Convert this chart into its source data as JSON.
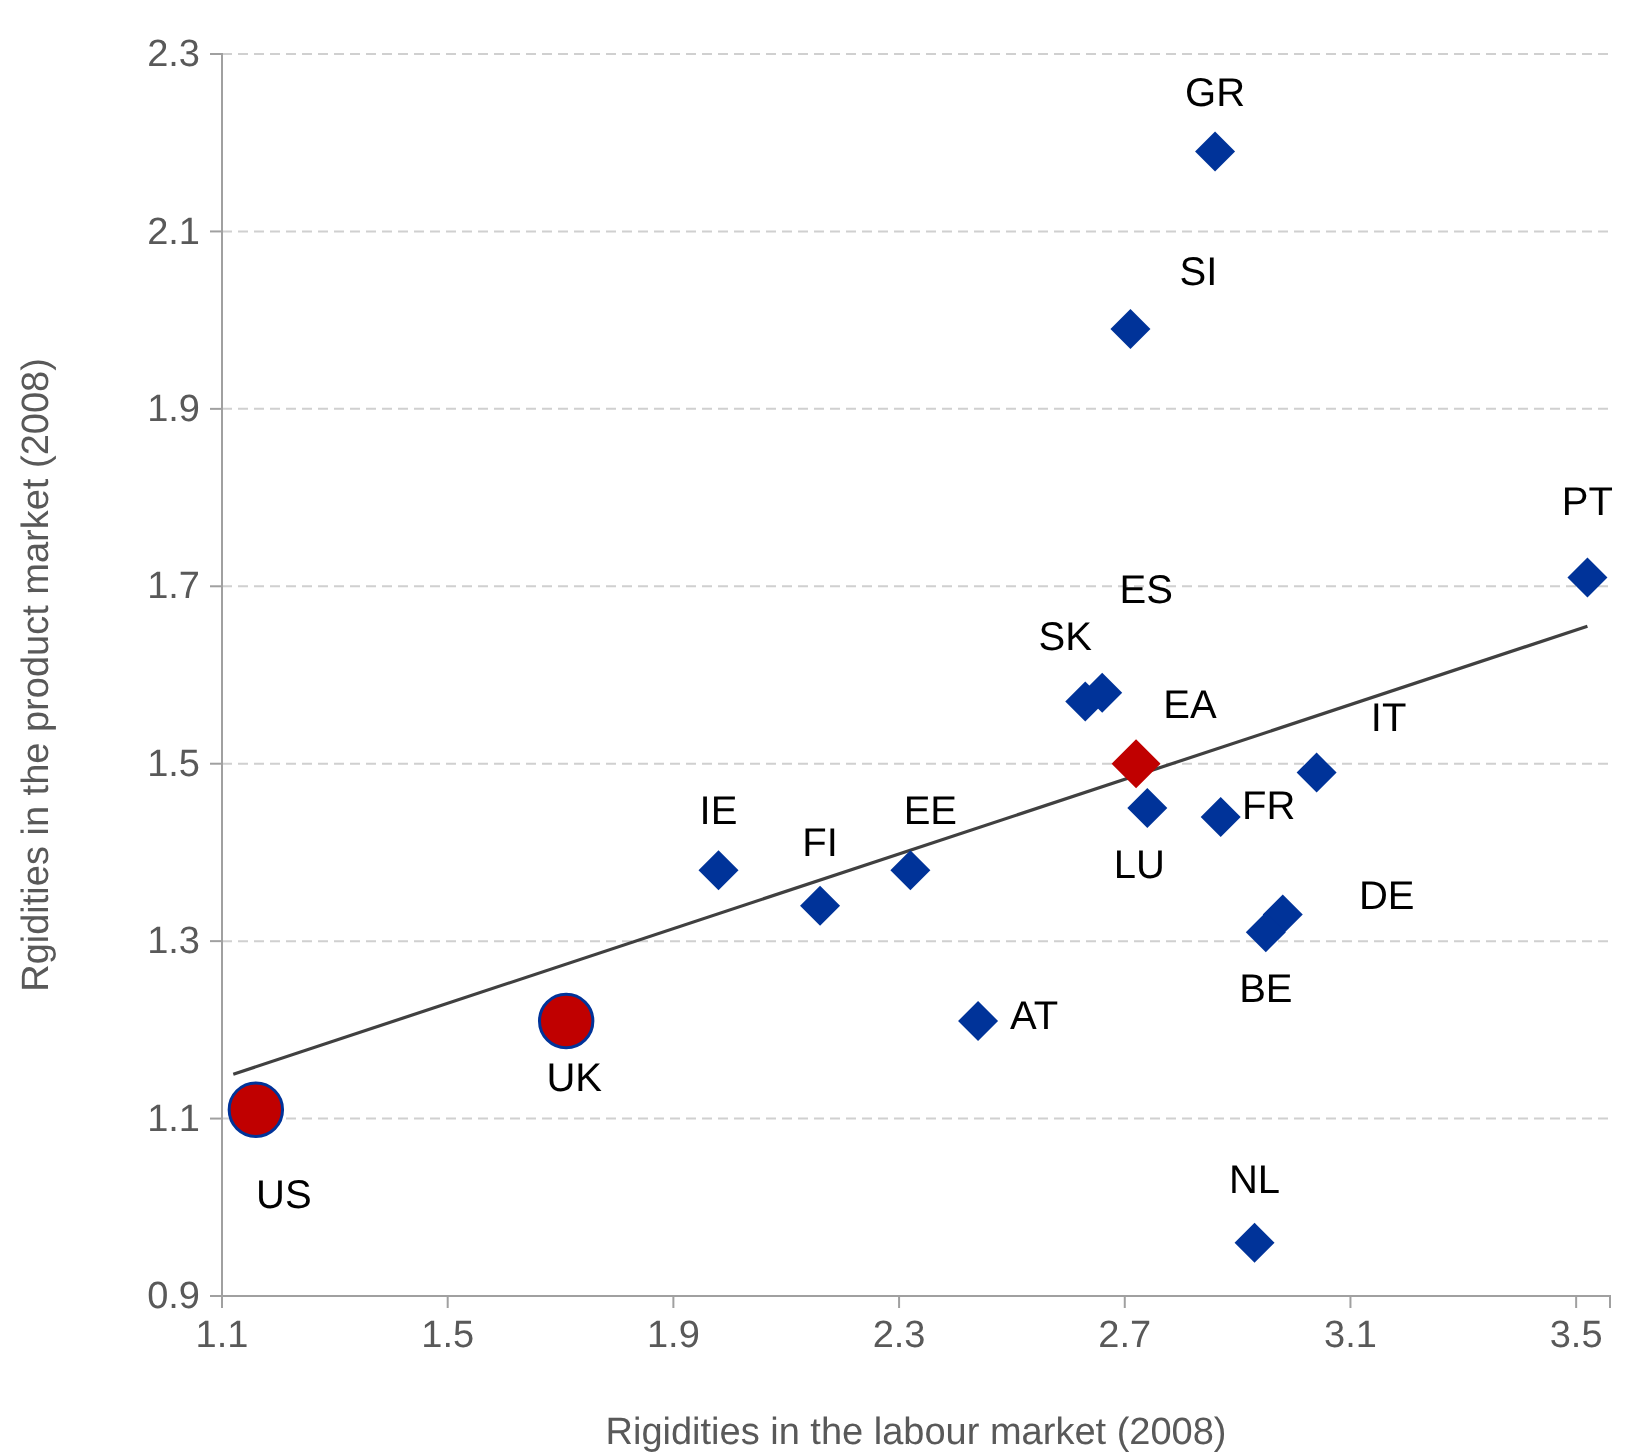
{
  "chart_data": {
    "type": "scatter",
    "xlabel": "Rigidities in the labour market (2008)",
    "ylabel": "Rgidities in the product market (2008)",
    "xlim": [
      1.1,
      3.56
    ],
    "ylim": [
      0.9,
      2.3
    ],
    "xticks": [
      1.1,
      1.5,
      1.9,
      2.3,
      2.7,
      3.1,
      3.5
    ],
    "yticks": [
      0.9,
      1.1,
      1.3,
      1.5,
      1.7,
      1.9,
      2.1,
      2.3
    ],
    "grid": "y",
    "series": [
      {
        "marker": "diamond",
        "color": "#003399",
        "x": [
          1.98,
          2.16,
          2.32,
          2.44,
          2.63,
          2.66,
          2.74,
          2.87,
          3.04,
          2.98,
          2.95,
          2.93,
          2.86,
          2.71,
          3.52
        ],
        "values": [
          1.38,
          1.34,
          1.38,
          1.21,
          1.57,
          1.58,
          1.45,
          1.44,
          1.49,
          1.33,
          1.31,
          0.96,
          2.19,
          1.99,
          1.71
        ]
      },
      {
        "marker": "circle",
        "color": "#c00000",
        "x": [
          1.16,
          1.71
        ],
        "values": [
          1.11,
          1.21
        ]
      },
      {
        "marker": "diamond",
        "color": "#c00000",
        "x": [
          2.72
        ],
        "values": [
          1.5
        ]
      },
      {
        "type": "line",
        "marker": "none",
        "line_style": "solid",
        "color": "#404040",
        "x": [
          1.12,
          3.52
        ],
        "values": [
          1.15,
          1.655
        ]
      }
    ],
    "annotations": [
      {
        "text": "IE",
        "x": 1.98,
        "y": 1.38
      },
      {
        "text": "FI",
        "x": 2.16,
        "y": 1.34
      },
      {
        "text": "EE",
        "x": 2.32,
        "y": 1.38
      },
      {
        "text": "AT",
        "x": 2.44,
        "y": 1.21
      },
      {
        "text": "SK",
        "x": 2.63,
        "y": 1.57
      },
      {
        "text": "ES",
        "x": 2.66,
        "y": 1.58
      },
      {
        "text": "LU",
        "x": 2.74,
        "y": 1.45
      },
      {
        "text": "FR",
        "x": 2.87,
        "y": 1.44
      },
      {
        "text": "IT",
        "x": 3.04,
        "y": 1.49
      },
      {
        "text": "DE",
        "x": 2.98,
        "y": 1.33
      },
      {
        "text": "BE",
        "x": 2.95,
        "y": 1.31
      },
      {
        "text": "NL",
        "x": 2.93,
        "y": 0.96
      },
      {
        "text": "GR",
        "x": 2.86,
        "y": 2.19
      },
      {
        "text": "SI",
        "x": 2.71,
        "y": 1.99
      },
      {
        "text": "PT",
        "x": 3.52,
        "y": 1.71
      },
      {
        "text": "US",
        "x": 1.16,
        "y": 1.11
      },
      {
        "text": "UK",
        "x": 1.71,
        "y": 1.21
      },
      {
        "text": "EA",
        "x": 2.72,
        "y": 1.5
      }
    ]
  }
}
